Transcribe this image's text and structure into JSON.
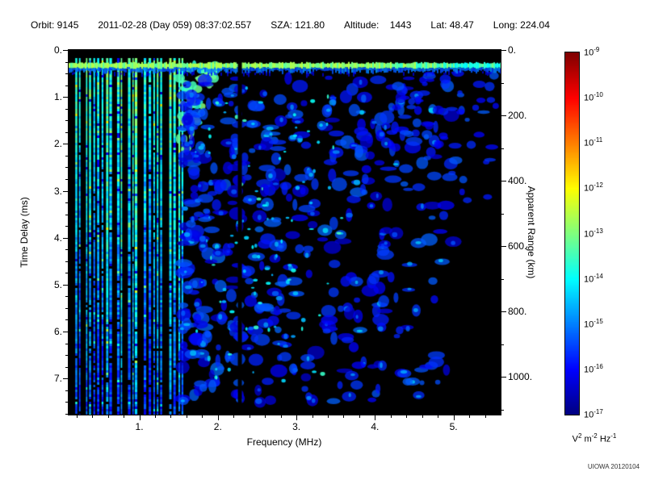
{
  "header": {
    "segments": [
      "Orbit: 9145",
      "2011-02-28 (Day 059) 08:37:02.557",
      "SZA: 121.80",
      "Altitude:    1443",
      "Lat: 48.47",
      "Long: 224.04"
    ]
  },
  "chart_data": {
    "type": "heatmap",
    "title": "",
    "xlabel": "Frequency (MHz)",
    "ylabel_left": "Time Delay (ms)",
    "ylabel_right": "Apparent Range (km)",
    "xlim_mhz": [
      0.1,
      5.6
    ],
    "ylim_ms": [
      0,
      7.77
    ],
    "right_axis_km_range": [
      0,
      1115
    ],
    "x_ticks": [
      {
        "value": 1,
        "label": "1."
      },
      {
        "value": 2,
        "label": "2."
      },
      {
        "value": 3,
        "label": "3."
      },
      {
        "value": 4,
        "label": "4."
      },
      {
        "value": 5,
        "label": "5."
      }
    ],
    "y_ticks_ms": [
      {
        "value": 0,
        "label": "0."
      },
      {
        "value": 1,
        "label": "1."
      },
      {
        "value": 2,
        "label": "2."
      },
      {
        "value": 3,
        "label": "3."
      },
      {
        "value": 4,
        "label": "4."
      },
      {
        "value": 5,
        "label": "5."
      },
      {
        "value": 6,
        "label": "6."
      },
      {
        "value": 7,
        "label": "7."
      }
    ],
    "y_ticks_km": [
      {
        "value": 0,
        "label": "0."
      },
      {
        "value": 200,
        "label": "200."
      },
      {
        "value": 400,
        "label": "400."
      },
      {
        "value": 600,
        "label": "600."
      },
      {
        "value": 800,
        "label": "800."
      },
      {
        "value": 1000,
        "label": "1000."
      }
    ],
    "colorbar": {
      "scale": "log10",
      "max": "1e-9",
      "min": "1e-17",
      "tick_exponents": [
        "-9",
        "-10",
        "-11",
        "-12",
        "-13",
        "-14",
        "-15",
        "-16",
        "-17"
      ],
      "unit_parts": [
        [
          "V",
          "2"
        ],
        [
          " m",
          "-2"
        ],
        [
          " Hz",
          "-1"
        ]
      ]
    },
    "features": {
      "surface_reflection_delay_ms": 0.33,
      "ionospheric_stripe_max_mhz": 1.5,
      "echo_trace_mhz_range": [
        1.5,
        2.0
      ],
      "dark_gap_mhz": 2.28,
      "diffuse_scatter_mhz_range": [
        1.55,
        5.0
      ],
      "description": "AIS radar sounder ionogram: dense vertical green/cyan ionospheric resonance stripes below ~1.5 MHz spanning all time delays; bright horizontal surface reflection band near 0.33 ms across all frequencies; diffuse dim blue scatter between ~1.6 and ~5 MHz; black dropout column near 2.3 MHz; mostly black above 4.8 MHz at large delays."
    }
  },
  "credit": "UIOWA 20120104"
}
